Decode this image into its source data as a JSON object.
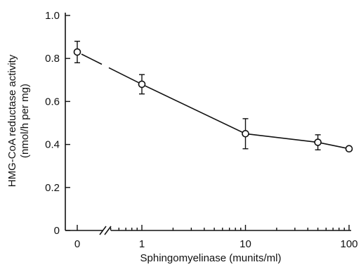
{
  "chart_data": {
    "type": "scatter",
    "title": "",
    "xlabel": "Sphingomyelinase (munits/ml)",
    "ylabel_line1": "HMG-CoA reductase activity",
    "ylabel_line2": "(nmol/h per mg)",
    "x_scale": "broken-log",
    "x_ticks": [
      0,
      1,
      10,
      100
    ],
    "x_tick_labels": [
      "0",
      "1",
      "10",
      "100"
    ],
    "ylim": [
      0,
      1.0
    ],
    "y_ticks": [
      0,
      0.2,
      0.4,
      0.6,
      0.8,
      1.0
    ],
    "y_tick_labels": [
      "0",
      "0.2",
      "0.4",
      "0.6",
      "0.8",
      "1.0"
    ],
    "grid": false,
    "series": [
      {
        "marker": "open-circle",
        "points": [
          {
            "x": 0,
            "y": 0.83,
            "err": 0.05
          },
          {
            "x": 1,
            "y": 0.68,
            "err": 0.045
          },
          {
            "x": 10,
            "y": 0.45,
            "err": 0.07
          },
          {
            "x": 50,
            "y": 0.41,
            "err": 0.035
          },
          {
            "x": 100,
            "y": 0.38,
            "err": 0
          }
        ]
      }
    ]
  }
}
